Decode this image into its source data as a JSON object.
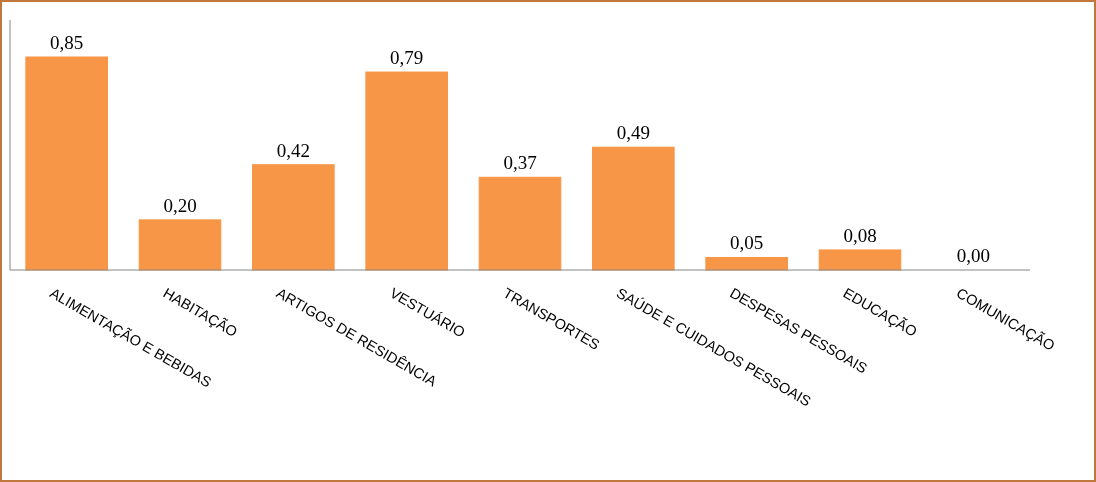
{
  "chart_data": {
    "type": "bar",
    "categories": [
      "ALIMENTAÇÃO E BEBIDAS",
      "HABITAÇÃO",
      "ARTIGOS DE RESIDÊNCIA",
      "VESTUÁRIO",
      "TRANSPORTES",
      "SAÚDE E CUIDADOS PESSOAIS",
      "DESPESAS PESSOAIS",
      "EDUCAÇÃO",
      "COMUNICAÇÃO"
    ],
    "values": [
      0.85,
      0.2,
      0.42,
      0.79,
      0.37,
      0.49,
      0.05,
      0.08,
      0.0
    ],
    "value_labels": [
      "0,85",
      "0,20",
      "0,42",
      "0,79",
      "0,37",
      "0,49",
      "0,05",
      "0,08",
      "0,00"
    ],
    "color": "#f79646"
  }
}
